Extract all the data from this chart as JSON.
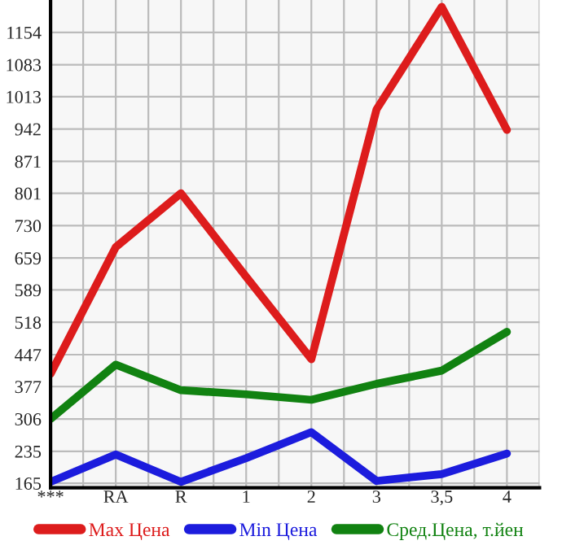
{
  "chart_data": {
    "type": "line",
    "categories": [
      "***",
      "RA",
      "R",
      "1",
      "2",
      "3",
      "3,5",
      "4"
    ],
    "series": [
      {
        "name": "Max Цена",
        "color": "#dd1c1c",
        "values": [
          405,
          683,
          801,
          618,
          437,
          985,
          1210,
          940
        ]
      },
      {
        "name": "Min Цена",
        "color": "#1c1cdd",
        "values": [
          168,
          228,
          168,
          220,
          277,
          170,
          185,
          230
        ]
      },
      {
        "name": "Сред.Цена, т.йен",
        "color": "#118211",
        "values": [
          306,
          425,
          369,
          360,
          348,
          383,
          412,
          497
        ]
      }
    ],
    "ylim": [
      155,
      1225
    ],
    "yticks": [
      165,
      235,
      306,
      377,
      447,
      518,
      589,
      659,
      730,
      801,
      871,
      942,
      1013,
      1083,
      1154
    ],
    "grid": true,
    "legend": "bottom",
    "marker": "none",
    "line_style": "solid"
  }
}
